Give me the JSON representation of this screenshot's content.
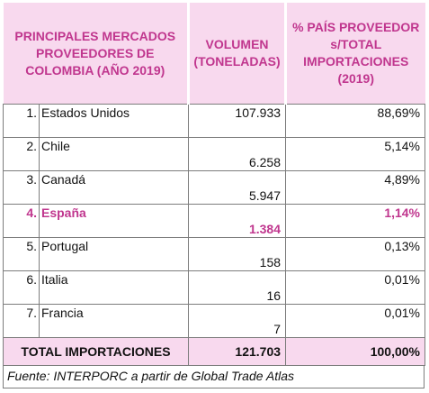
{
  "table": {
    "header": [
      "PRINCIPALES MERCADOS PROVEEDORES DE COLOMBIA (AÑO 2019)",
      "VOLUMEN (TONELADAS)",
      "% PAÍS PROVEEDOR s/TOTAL IMPORTACIONES (2019)"
    ],
    "rows": [
      [
        "1.",
        "Estados Unidos",
        "107.933",
        "88,69%"
      ],
      [
        "2.",
        "Chile",
        "6.258",
        "5,14%"
      ],
      [
        "3.",
        "Canadá",
        "5.947",
        "4,89%"
      ],
      [
        "4.",
        "España",
        "1.384",
        "1,14%"
      ],
      [
        "5.",
        "Portugal",
        "158",
        "0,13%"
      ],
      [
        "6.",
        "Italia",
        "16",
        "0,01%"
      ],
      [
        "7.",
        "Francia",
        "7",
        "0,01%"
      ]
    ],
    "total": [
      "TOTAL IMPORTACIONES",
      "121.703",
      "100,00%"
    ],
    "source": "Fuente: INTERPORC a partir de Global Trade Atlas"
  }
}
